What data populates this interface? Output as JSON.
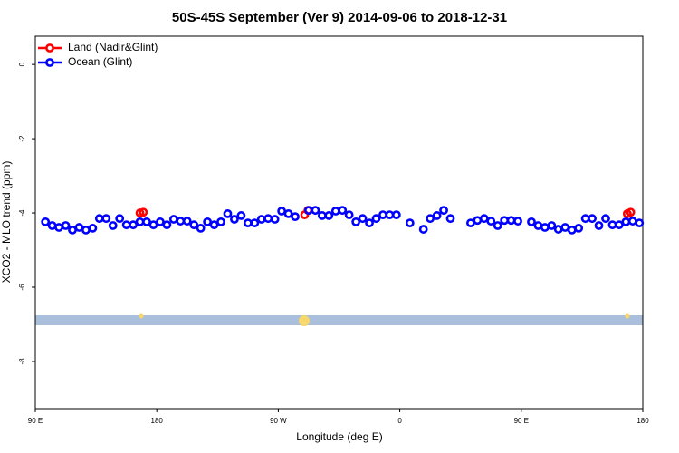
{
  "chart_data": {
    "type": "scatter",
    "title": "50S-45S September (Ver 9)   2014-09-06 to 2018-12-31",
    "x_label": "Longitude (deg E)",
    "y_label": "XCO2 - MLO trend (ppm)",
    "xlim": [
      90,
      540
    ],
    "ylim": [
      -9.27,
      0.76
    ],
    "xticks": [
      {
        "value": 90,
        "label": "90 E"
      },
      180,
      {
        "value": 270,
        "label": "90 W"
      },
      {
        "value": 360,
        "label": "0"
      },
      {
        "value": 450,
        "label": "90 E"
      },
      {
        "value": 540,
        "label": "180"
      }
    ],
    "yticks": [
      0,
      -2,
      -4,
      -6,
      -8
    ],
    "legend_position": "top-left",
    "series": [
      {
        "name": "Land (Nadir&Glint)",
        "color": "#ff0000",
        "x": [
          167.5,
          170,
          289.5,
          292,
          528.5,
          531
        ],
        "values": [
          -4.0,
          -3.98,
          -4.05,
          -3.93,
          -4.02,
          -3.98
        ]
      },
      {
        "name": "Ocean (Glint)",
        "color": "#0000ff",
        "x": [
          97.5,
          102.5,
          107.5,
          112.5,
          117.5,
          122.5,
          127.5,
          132.5,
          137.5,
          142.5,
          147.5,
          152.5,
          157.5,
          162.5,
          167.5,
          172.5,
          177.5,
          182.5,
          187.5,
          192.5,
          197.5,
          202.5,
          207.5,
          212.5,
          217.5,
          222.5,
          227.5,
          232.5,
          237.5,
          242.5,
          247.5,
          252.5,
          257.5,
          262.5,
          267.5,
          272.5,
          277.5,
          282.5,
          292.5,
          297.5,
          302.5,
          307.5,
          312.5,
          317.5,
          322.5,
          327.5,
          332.5,
          337.5,
          342.5,
          347.5,
          352.5,
          357.5,
          367.5,
          377.5,
          382.5,
          387.5,
          392.5,
          397.5,
          412.5,
          417.5,
          422.5,
          427.5,
          432.5,
          437.5,
          442.5,
          447.5,
          457.5,
          462.5,
          467.5,
          472.5,
          477.5,
          482.5,
          487.5,
          492.5,
          497.5,
          502.5,
          507.5,
          512.5,
          517.5,
          522.5,
          527.5,
          532.5,
          537.5
        ],
        "values": [
          -4.24,
          -4.34,
          -4.39,
          -4.34,
          -4.46,
          -4.39,
          -4.46,
          -4.41,
          -4.15,
          -4.15,
          -4.34,
          -4.15,
          -4.32,
          -4.32,
          -4.24,
          -4.24,
          -4.32,
          -4.24,
          -4.32,
          -4.17,
          -4.22,
          -4.22,
          -4.32,
          -4.41,
          -4.24,
          -4.32,
          -4.24,
          -4.02,
          -4.17,
          -4.07,
          -4.27,
          -4.27,
          -4.17,
          -4.15,
          -4.17,
          -3.95,
          -4.02,
          -4.1,
          -3.93,
          -3.93,
          -4.07,
          -4.07,
          -3.95,
          -3.93,
          -4.05,
          -4.24,
          -4.15,
          -4.27,
          -4.15,
          -4.05,
          -4.05,
          -4.05,
          -4.27,
          -4.44,
          -4.15,
          -4.07,
          -3.93,
          -4.15,
          -4.27,
          -4.2,
          -4.15,
          -4.22,
          -4.34,
          -4.2,
          -4.2,
          -4.22,
          -4.24,
          -4.34,
          -4.39,
          -4.34,
          -4.44,
          -4.39,
          -4.46,
          -4.41,
          -4.15,
          -4.15,
          -4.34,
          -4.15,
          -4.32,
          -4.32,
          -4.24,
          -4.22,
          -4.27
        ]
      }
    ]
  }
}
